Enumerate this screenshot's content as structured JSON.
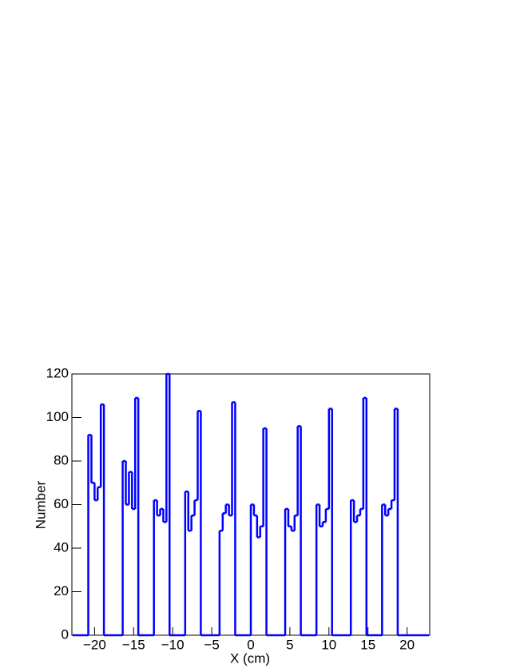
{
  "chart_data": {
    "type": "histogram",
    "x_label": "X (cm)",
    "y_label": "Number",
    "bins": [
      -22.8,
      -22.4,
      -22,
      -21.6,
      -21.2,
      -20.8,
      -20.4,
      -20,
      -19.6,
      -19.2,
      -18.8,
      -18.4,
      -18,
      -17.6,
      -17.2,
      -16.8,
      -16.4,
      -16,
      -15.6,
      -15.2,
      -14.8,
      -14.4,
      -14,
      -13.6,
      -13.2,
      -12.8,
      -12.4,
      -12,
      -11.6,
      -11.2,
      -10.8,
      -10.4,
      -10,
      -9.6,
      -9.2,
      -8.8,
      -8.4,
      -8,
      -7.6,
      -7.2,
      -6.8,
      -6.4,
      -6,
      -5.6,
      -5.2,
      -4.8,
      -4.4,
      -4,
      -3.6,
      -3.2,
      -2.8,
      -2.4,
      -2,
      -1.6,
      -1.2,
      -0.8,
      -0.4,
      0,
      0.4,
      0.8,
      1.2,
      1.6,
      2,
      2.4,
      2.8,
      3.2,
      3.6,
      4,
      4.4,
      4.8,
      5.2,
      5.6,
      6,
      6.4,
      6.8,
      7.2,
      7.6,
      8,
      8.4,
      8.8,
      9.2,
      9.6,
      10,
      10.4,
      10.8,
      11.2,
      11.6,
      12,
      12.4,
      12.8,
      13.2,
      13.6,
      14,
      14.4,
      14.8,
      15.2,
      15.6,
      16,
      16.4,
      16.8,
      17.2,
      17.6,
      18,
      18.4,
      18.8,
      19.2,
      19.6,
      20,
      20.4,
      20.8,
      21.2,
      21.6,
      22,
      22.4,
      22.8
    ],
    "values": [
      0,
      0,
      0,
      0,
      0,
      92,
      70,
      62,
      68,
      106,
      0,
      0,
      0,
      0,
      0,
      0,
      80,
      60,
      75,
      58,
      109,
      0,
      0,
      0,
      0,
      0,
      62,
      55,
      58,
      52,
      120,
      0,
      0,
      0,
      0,
      0,
      66,
      48,
      55,
      62,
      103,
      0,
      0,
      0,
      0,
      0,
      0,
      48,
      56,
      60,
      55,
      107,
      0,
      0,
      0,
      0,
      0,
      60,
      55,
      45,
      50,
      95,
      0,
      0,
      0,
      0,
      0,
      0,
      58,
      50,
      48,
      55,
      96,
      0,
      0,
      0,
      0,
      0,
      60,
      50,
      52,
      58,
      104,
      0,
      0,
      0,
      0,
      0,
      0,
      62,
      52,
      55,
      58,
      109,
      0,
      0,
      0,
      0,
      0,
      60,
      55,
      58,
      62,
      104,
      0,
      0,
      0,
      0,
      0,
      0,
      0,
      0,
      0,
      0
    ],
    "color": "#0000ff",
    "xlim": [
      -22.9,
      22.9
    ],
    "ylim": [
      0,
      120
    ],
    "xticks": [
      {
        "value": -20,
        "label": "−20"
      },
      {
        "value": -15,
        "label": "−15"
      },
      {
        "value": -10,
        "label": "−10"
      },
      {
        "value": -5,
        "label": "−5"
      },
      0,
      5,
      10,
      15,
      20
    ],
    "yticks": [
      0,
      20,
      40,
      60,
      80,
      100,
      120
    ]
  }
}
